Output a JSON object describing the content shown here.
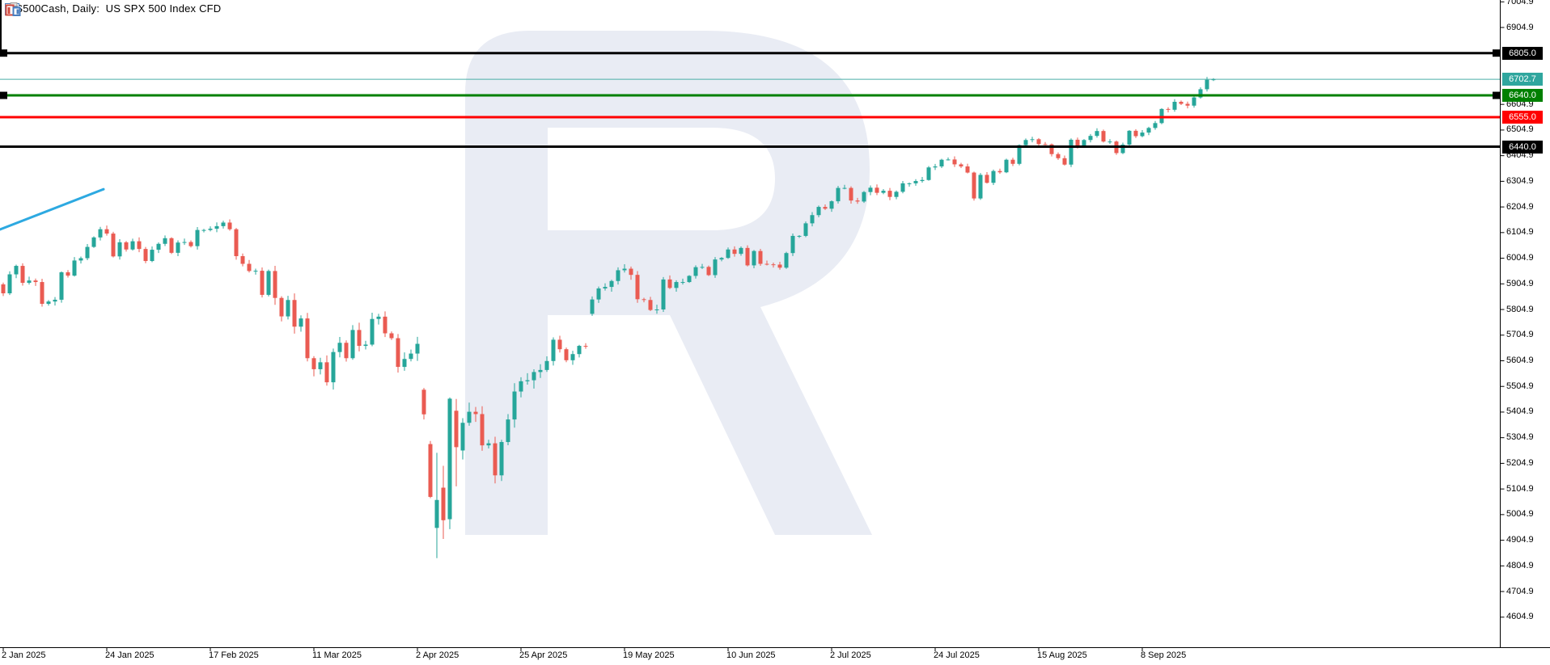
{
  "header": {
    "symbol_title": ".US500Cash, Daily:  US SPX 500 Index CFD",
    "icons": [
      "symbol-info-icon",
      "chart-windows-icon"
    ]
  },
  "colors": {
    "background": "#ffffff",
    "bull_candle": "#26a69a",
    "bear_candle": "#ea5b52",
    "current_line": "#4aaea6",
    "current_badge": "#2fa69e",
    "level_black": "#000000",
    "level_green": "#008000",
    "level_red": "#ff0000",
    "trendline_blue": "#2da9e1",
    "watermark": "#e9ecf4",
    "axis_text": "#000000"
  },
  "chart_data": {
    "type": "candlestick",
    "symbol": ".US500Cash",
    "timeframe": "Daily",
    "description": "US SPX 500 Index CFD",
    "current_price": 6702.7,
    "current_price_label": "6702.7",
    "y_axis": {
      "top_tick": 7004.9,
      "bottom_tick": 4604.9,
      "step": 100
    },
    "x_labels": [
      {
        "t": "2 Jan 2025",
        "bar": 0
      },
      {
        "t": "24 Jan 2025",
        "bar": 16
      },
      {
        "t": "17 Feb 2025",
        "bar": 32
      },
      {
        "t": "11 Mar 2025",
        "bar": 48
      },
      {
        "t": "2 Apr 2025",
        "bar": 64
      },
      {
        "t": "25 Apr 2025",
        "bar": 80
      },
      {
        "t": "19 May 2025",
        "bar": 96
      },
      {
        "t": "10 Jun 2025",
        "bar": 112
      },
      {
        "t": "2 Jul 2025",
        "bar": 128
      },
      {
        "t": "24 Jul 2025",
        "bar": 144
      },
      {
        "t": "15 Aug 2025",
        "bar": 160
      },
      {
        "t": "8 Sep 2025",
        "bar": 176
      }
    ],
    "levels": [
      {
        "price": 6805.0,
        "label": "6805.0",
        "color": "#000000",
        "selected": true
      },
      {
        "price": 6640.0,
        "label": "6640.0",
        "color": "#008000",
        "selected": true
      },
      {
        "price": 6555.0,
        "label": "6555.0",
        "color": "#ff0000",
        "selected": false
      },
      {
        "price": 6440.0,
        "label": "6440.0",
        "color": "#000000",
        "selected": false
      }
    ],
    "trendline": {
      "bar1": -0.5,
      "price1": 6117,
      "bar2": 15.5,
      "price2": 6274
    },
    "first_open": 5903,
    "closes": [
      5868,
      5942,
      5975,
      5909,
      5918,
      5912,
      5827,
      5836,
      5843,
      5950,
      5937,
      5996,
      6005,
      6049,
      6086,
      6118,
      6101,
      6012,
      6067,
      6039,
      6071,
      6041,
      5994,
      6038,
      6061,
      6083,
      6026,
      6066,
      6068,
      6052,
      6115,
      6115,
      6120,
      6130,
      6144,
      6118,
      6013,
      5983,
      5955,
      5956,
      5862,
      5955,
      5850,
      5778,
      5842,
      5738,
      5770,
      5615,
      5572,
      5599,
      5521,
      5639,
      5675,
      5615,
      5725,
      5663,
      5668,
      5768,
      5777,
      5712,
      5693,
      5581,
      5612,
      5633,
      5671,
      5396,
      5074,
      5062,
      4983,
      5457,
      5268,
      5363,
      5406,
      5397,
      5275,
      5283,
      5158,
      5288,
      5376,
      5485,
      5525,
      5529,
      5561,
      5569,
      5604,
      5687,
      5650,
      5607,
      5631,
      5663,
      5660,
      5844,
      5887,
      5893,
      5916,
      5958,
      5964,
      5940,
      5845,
      5842,
      5803,
      5805,
      5922,
      5889,
      5912,
      5912,
      5936,
      5970,
      5971,
      5939,
      6000,
      6006,
      6039,
      6022,
      6045,
      5977,
      6033,
      5983,
      5981,
      5980,
      5968,
      6025,
      6092,
      6092,
      6141,
      6173,
      6205,
      6198,
      6227,
      6279,
      6279,
      6230,
      6226,
      6263,
      6280,
      6260,
      6268,
      6244,
      6264,
      6297,
      6297,
      6306,
      6310,
      6359,
      6363,
      6389,
      6390,
      6371,
      6363,
      6339,
      6238,
      6330,
      6299,
      6345,
      6340,
      6389,
      6373,
      6446,
      6466,
      6469,
      6450,
      6449,
      6411,
      6395,
      6370,
      6467,
      6439,
      6466,
      6482,
      6501,
      6460,
      6460,
      6415,
      6448,
      6502,
      6481,
      6495,
      6513,
      6532,
      6587,
      6584,
      6615,
      6607,
      6600,
      6632,
      6664,
      6701,
      6702.7
    ],
    "wick_profile": [
      [
        0,
        13
      ],
      [
        42,
        24
      ],
      [
        63,
        30
      ],
      [
        84,
        16
      ],
      [
        106,
        11
      ],
      [
        150,
        9
      ]
    ],
    "overrides": {
      "65": [
        5492,
        5499,
        5376,
        5396
      ],
      "66": [
        5280,
        5292,
        5069,
        5074
      ],
      "67": [
        4953,
        5246,
        4835,
        5062
      ],
      "68": [
        5110,
        5195,
        4910,
        4983
      ],
      "69": [
        4987,
        5462,
        4948,
        5457
      ],
      "70": [
        5410,
        5456,
        5115,
        5268
      ],
      "71": [
        5255,
        5381,
        5220,
        5363
      ],
      "91": [
        5788,
        5856,
        5780,
        5844
      ],
      "186": [
        6664,
        6712,
        6655,
        6701
      ],
      "187": [
        6700,
        6707,
        6696,
        6702.7
      ]
    }
  }
}
